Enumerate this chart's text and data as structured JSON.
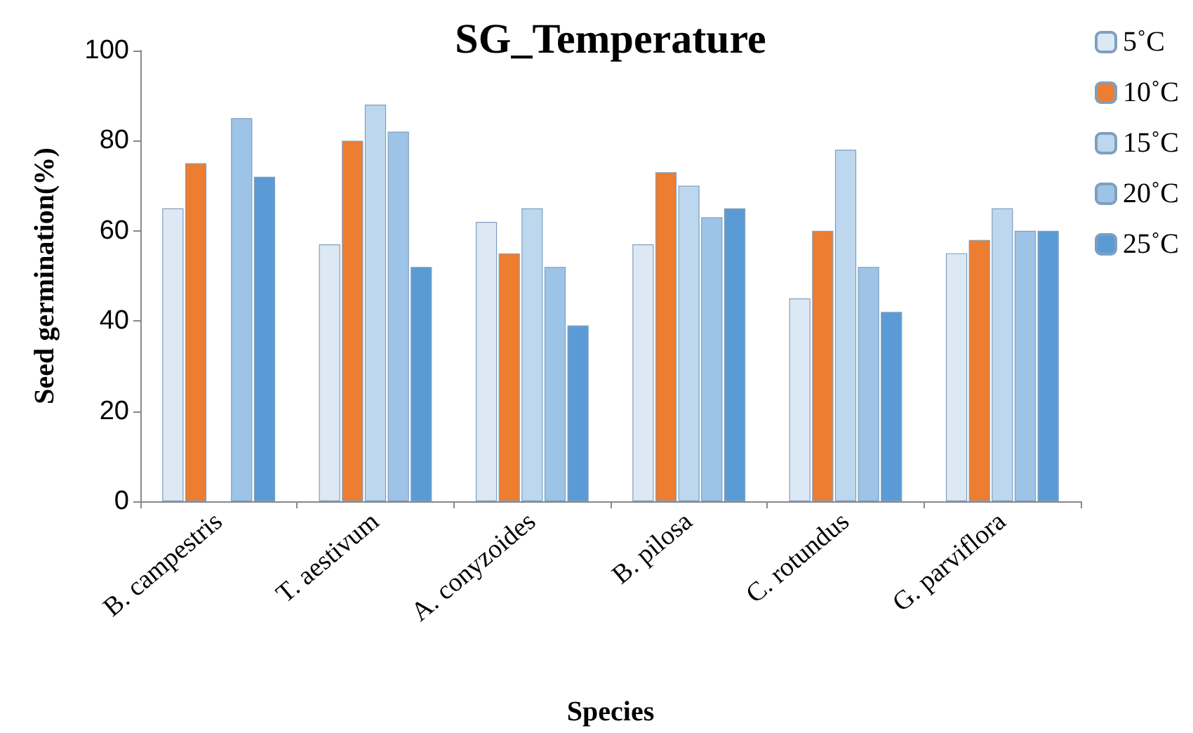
{
  "chart_data": {
    "type": "bar",
    "title": "SG_Temperature",
    "xlabel": "Species",
    "ylabel": "Seed germination(%)",
    "categories": [
      "B. campestris",
      "T. aestivum",
      "A. conyzoides",
      "B. pilosa",
      "C. rotundus",
      "G. parviflora"
    ],
    "series": [
      {
        "name": "5˚C",
        "color": "#dce9f5",
        "values": [
          65,
          57,
          62,
          57,
          45,
          55
        ]
      },
      {
        "name": "10˚C",
        "color": "#ed7d31",
        "values": [
          75,
          80,
          55,
          73,
          60,
          58
        ]
      },
      {
        "name": "15˚C",
        "color": "#bdd7ee",
        "values": [
          0,
          88,
          65,
          70,
          78,
          65
        ]
      },
      {
        "name": "20˚C",
        "color": "#9dc3e6",
        "values": [
          85,
          82,
          52,
          63,
          52,
          60
        ]
      },
      {
        "name": "25˚C",
        "color": "#5b9bd5",
        "values": [
          72,
          52,
          39,
          65,
          42,
          60
        ]
      }
    ],
    "ylim": [
      0,
      100
    ],
    "yticks": [
      0,
      20,
      40,
      60,
      80,
      100
    ],
    "grid": false,
    "legend": "right"
  }
}
